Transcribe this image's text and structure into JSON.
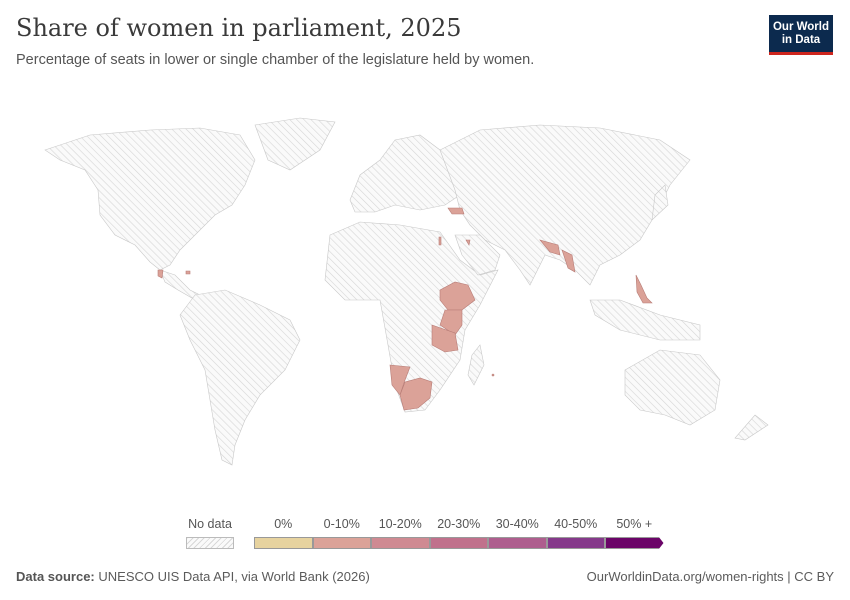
{
  "header": {
    "title": "Share of women in parliament, 2025",
    "subtitle": "Percentage of seats in lower or single chamber of the legislature held by women.",
    "logo_line1": "Our World",
    "logo_line2": "in Data"
  },
  "map": {
    "no_data_style": "hatched",
    "highlighted_regions_bin": "0-10%"
  },
  "legend": {
    "no_data_label": "No data",
    "bins": [
      {
        "label": "0%",
        "color": "#e7d39f"
      },
      {
        "label": "0-10%",
        "color": "#dba298"
      },
      {
        "label": "10-20%",
        "color": "#cf8a92"
      },
      {
        "label": "20-30%",
        "color": "#c0718c"
      },
      {
        "label": "30-40%",
        "color": "#ae5e8e"
      },
      {
        "label": "40-50%",
        "color": "#85398a"
      },
      {
        "label": "50% +",
        "color": "#6b0568"
      }
    ]
  },
  "footer": {
    "source_label": "Data source:",
    "source_text": "UNESCO UIS Data API, via World Bank (2026)",
    "link": "OurWorldinData.org/women-rights | CC BY"
  }
}
